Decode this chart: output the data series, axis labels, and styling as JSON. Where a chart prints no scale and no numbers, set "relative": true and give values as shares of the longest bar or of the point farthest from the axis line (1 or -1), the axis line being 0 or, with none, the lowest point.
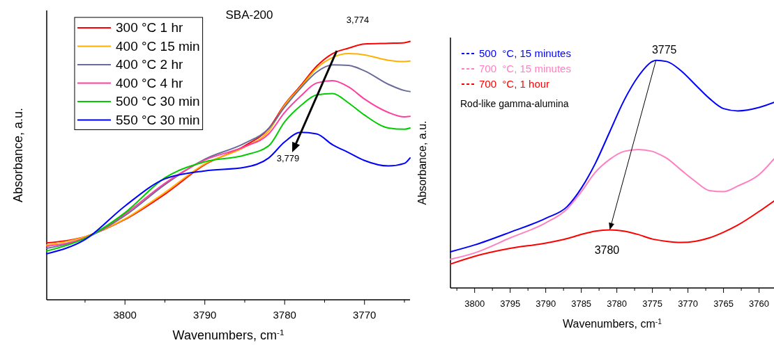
{
  "chart_data": [
    {
      "type": "line",
      "title": "SBA-200",
      "xlabel": "Wavenumbers, cm$^{-1}$",
      "ylabel": "Absorbance, a.u.",
      "relative": true,
      "legend": "top left",
      "xlim": [
        3809.8,
        3764.3
      ],
      "xticks": [
        {
          "value": 3805,
          "label": null
        },
        3800,
        {
          "value": 3795,
          "label": null
        },
        3790,
        {
          "value": 3785,
          "label": null
        },
        3780,
        {
          "value": 3775,
          "label": null
        },
        3770,
        {
          "value": 3765,
          "label": null
        }
      ],
      "x": [
        3809.8,
        3805,
        3800,
        3795,
        3790,
        3785,
        3782,
        3780,
        3778,
        3776,
        3774,
        3772,
        3770,
        3767,
        3765,
        3764.3
      ],
      "series": [
        {
          "name": "300 °C 1 hr",
          "color": "#ff0000",
          "values": [
            0.22,
            0.244,
            0.311,
            0.409,
            0.523,
            0.596,
            0.663,
            0.756,
            0.829,
            0.904,
            0.953,
            0.974,
            0.99,
            0.993,
            0.995,
            1.0
          ]
        },
        {
          "name": "400 °C 15 min",
          "color": "#ffb000",
          "values": [
            0.212,
            0.244,
            0.313,
            0.415,
            0.526,
            0.591,
            0.653,
            0.753,
            0.824,
            0.896,
            0.938,
            0.953,
            0.948,
            0.927,
            0.922,
            0.924
          ]
        },
        {
          "name": "400 °C 2 hr",
          "color": "#6b6b9b",
          "values": [
            0.199,
            0.238,
            0.326,
            0.446,
            0.544,
            0.606,
            0.663,
            0.746,
            0.819,
            0.881,
            0.909,
            0.907,
            0.886,
            0.834,
            0.81,
            0.806
          ]
        },
        {
          "name": "400 °C 4 hr",
          "color": "#ff3fa0",
          "values": [
            0.207,
            0.24,
            0.332,
            0.451,
            0.541,
            0.593,
            0.642,
            0.725,
            0.788,
            0.839,
            0.848,
            0.824,
            0.777,
            0.725,
            0.708,
            0.71
          ]
        },
        {
          "name": "500 °C 30 min",
          "color": "#00cc00",
          "values": [
            0.189,
            0.238,
            0.337,
            0.472,
            0.534,
            0.56,
            0.596,
            0.689,
            0.751,
            0.793,
            0.798,
            0.762,
            0.715,
            0.665,
            0.66,
            0.665
          ]
        },
        {
          "name": "550 °C 30 min",
          "color": "#0000ff",
          "values": [
            0.178,
            0.233,
            0.363,
            0.468,
            0.499,
            0.513,
            0.549,
            0.611,
            0.648,
            0.642,
            0.6,
            0.57,
            0.539,
            0.518,
            0.528,
            0.549
          ]
        }
      ],
      "annotations": [
        "3,774",
        "3,779"
      ]
    },
    {
      "type": "line",
      "xlabel": "Wavenumbers, cm$^{-1}$",
      "ylabel": "Absorbance, a.u.",
      "relative": true,
      "legend": "top left",
      "xlim": [
        3803.4,
        3757.9
      ],
      "xticks": [
        {
          "value": 3802.5,
          "label": null
        },
        3800,
        {
          "value": 3797.5,
          "label": null
        },
        3795,
        {
          "value": 3792.5,
          "label": null
        },
        3790,
        {
          "value": 3787.5,
          "label": null
        },
        3785,
        {
          "value": 3782.5,
          "label": null
        },
        3780,
        {
          "value": 3777.5,
          "label": null
        },
        3775,
        {
          "value": 3772.5,
          "label": null
        },
        3770,
        {
          "value": 3767.5,
          "label": null
        },
        3765,
        {
          "value": 3762.5,
          "label": null
        },
        3760
      ],
      "x": [
        3803.4,
        3800,
        3795,
        3790,
        3787,
        3785,
        3783,
        3781,
        3779,
        3777,
        3775,
        3774.5,
        3773,
        3771,
        3769,
        3767,
        3765,
        3763,
        3760,
        3757.9
      ],
      "series": [
        {
          "name": "500  °C, 15 minutes",
          "color": "#0000ff",
          "values": [
            0.159,
            0.189,
            0.245,
            0.306,
            0.357,
            0.438,
            0.549,
            0.686,
            0.823,
            0.929,
            0.995,
            1.0,
            0.995,
            0.955,
            0.894,
            0.833,
            0.788,
            0.778,
            0.793,
            0.815
          ]
        },
        {
          "name": "700  °C, 15 minutes",
          "color": "#ff80c0",
          "values": [
            0.126,
            0.154,
            0.22,
            0.286,
            0.347,
            0.423,
            0.509,
            0.565,
            0.6,
            0.608,
            0.6,
            0.594,
            0.57,
            0.519,
            0.469,
            0.428,
            0.423,
            0.448,
            0.498,
            0.567
          ]
        },
        {
          "name": "700  °C, 1 hour",
          "color": "#ff0000",
          "values": [
            0.105,
            0.139,
            0.174,
            0.197,
            0.217,
            0.235,
            0.25,
            0.255,
            0.25,
            0.235,
            0.215,
            0.212,
            0.205,
            0.2,
            0.205,
            0.22,
            0.245,
            0.276,
            0.336,
            0.382
          ]
        }
      ],
      "annotations": [
        "Rod-like gamma-alumina",
        {
          "text": "3775",
          "x": 3774.5,
          "y": 1.0
        },
        {
          "text": "3780",
          "x": 3781,
          "y": 0.255
        }
      ]
    }
  ]
}
